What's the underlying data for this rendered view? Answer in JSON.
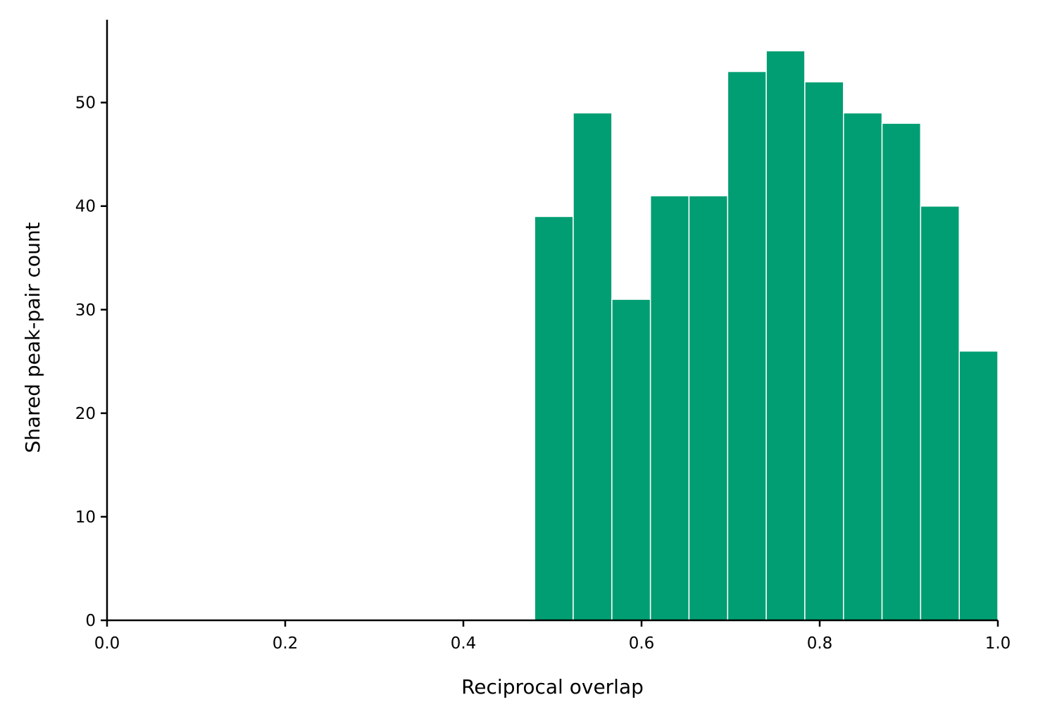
{
  "chart_data": {
    "type": "bar",
    "subtype": "histogram",
    "xlabel": "Reciprocal overlap",
    "ylabel": "Shared peak-pair count",
    "xlim": [
      0.0,
      1.0
    ],
    "ylim": [
      0,
      58
    ],
    "x_ticks": [
      0.0,
      0.2,
      0.4,
      0.6,
      0.8,
      1.0
    ],
    "x_tick_labels": [
      "0.0",
      "0.2",
      "0.4",
      "0.6",
      "0.8",
      "1.0"
    ],
    "y_ticks": [
      0,
      10,
      20,
      30,
      40,
      50
    ],
    "y_tick_labels": [
      "0",
      "10",
      "20",
      "30",
      "40",
      "50"
    ],
    "bin_edges": [
      0.48,
      0.5233,
      0.5667,
      0.61,
      0.6533,
      0.6967,
      0.74,
      0.7833,
      0.8267,
      0.87,
      0.9133,
      0.9567,
      1.0
    ],
    "values": [
      39,
      49,
      31,
      41,
      41,
      53,
      55,
      52,
      49,
      48,
      40,
      26
    ],
    "color": "#029e73",
    "grid": false,
    "spines": "left-bottom"
  }
}
